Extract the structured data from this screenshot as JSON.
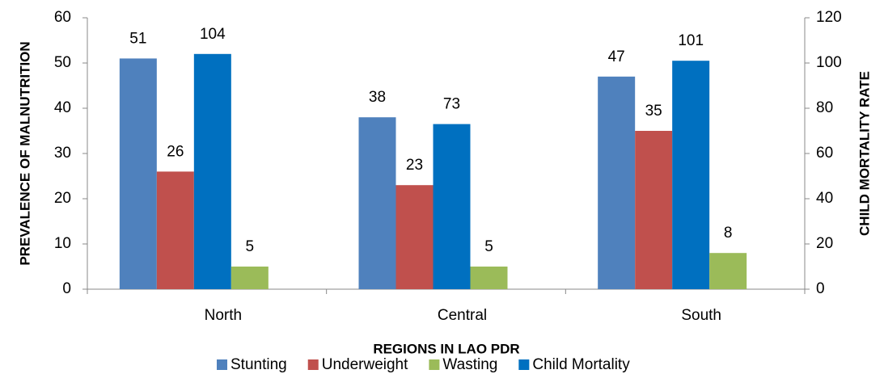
{
  "chart_data": {
    "type": "bar",
    "x_label": "REGIONS IN LAO PDR",
    "y_label": "PREVALENCE OF MALNUTRITION",
    "y2_label": "CHILD MORTALITY RATE",
    "categories": [
      "North",
      "Central",
      "South"
    ],
    "series": [
      {
        "name": "Stunting",
        "color": "#4f81bd",
        "values": [
          51,
          38,
          47
        ]
      },
      {
        "name": "Underweight",
        "color": "#c0504d",
        "values": [
          26,
          23,
          35
        ]
      },
      {
        "name": "Child Mortality",
        "color": "#0070c0",
        "values": [
          104,
          73,
          101
        ],
        "axis": "y2"
      },
      {
        "name": "Wasting",
        "color": "#9bbb59",
        "values": [
          5,
          5,
          8
        ]
      }
    ],
    "ylim": [
      0,
      60
    ],
    "yticks": [
      0,
      10,
      20,
      30,
      40,
      50,
      60
    ],
    "y2lim": [
      0,
      120
    ],
    "y2ticks": [
      0,
      20,
      40,
      60,
      80,
      100,
      120
    ],
    "legend_order": [
      0,
      1,
      3,
      2
    ]
  }
}
